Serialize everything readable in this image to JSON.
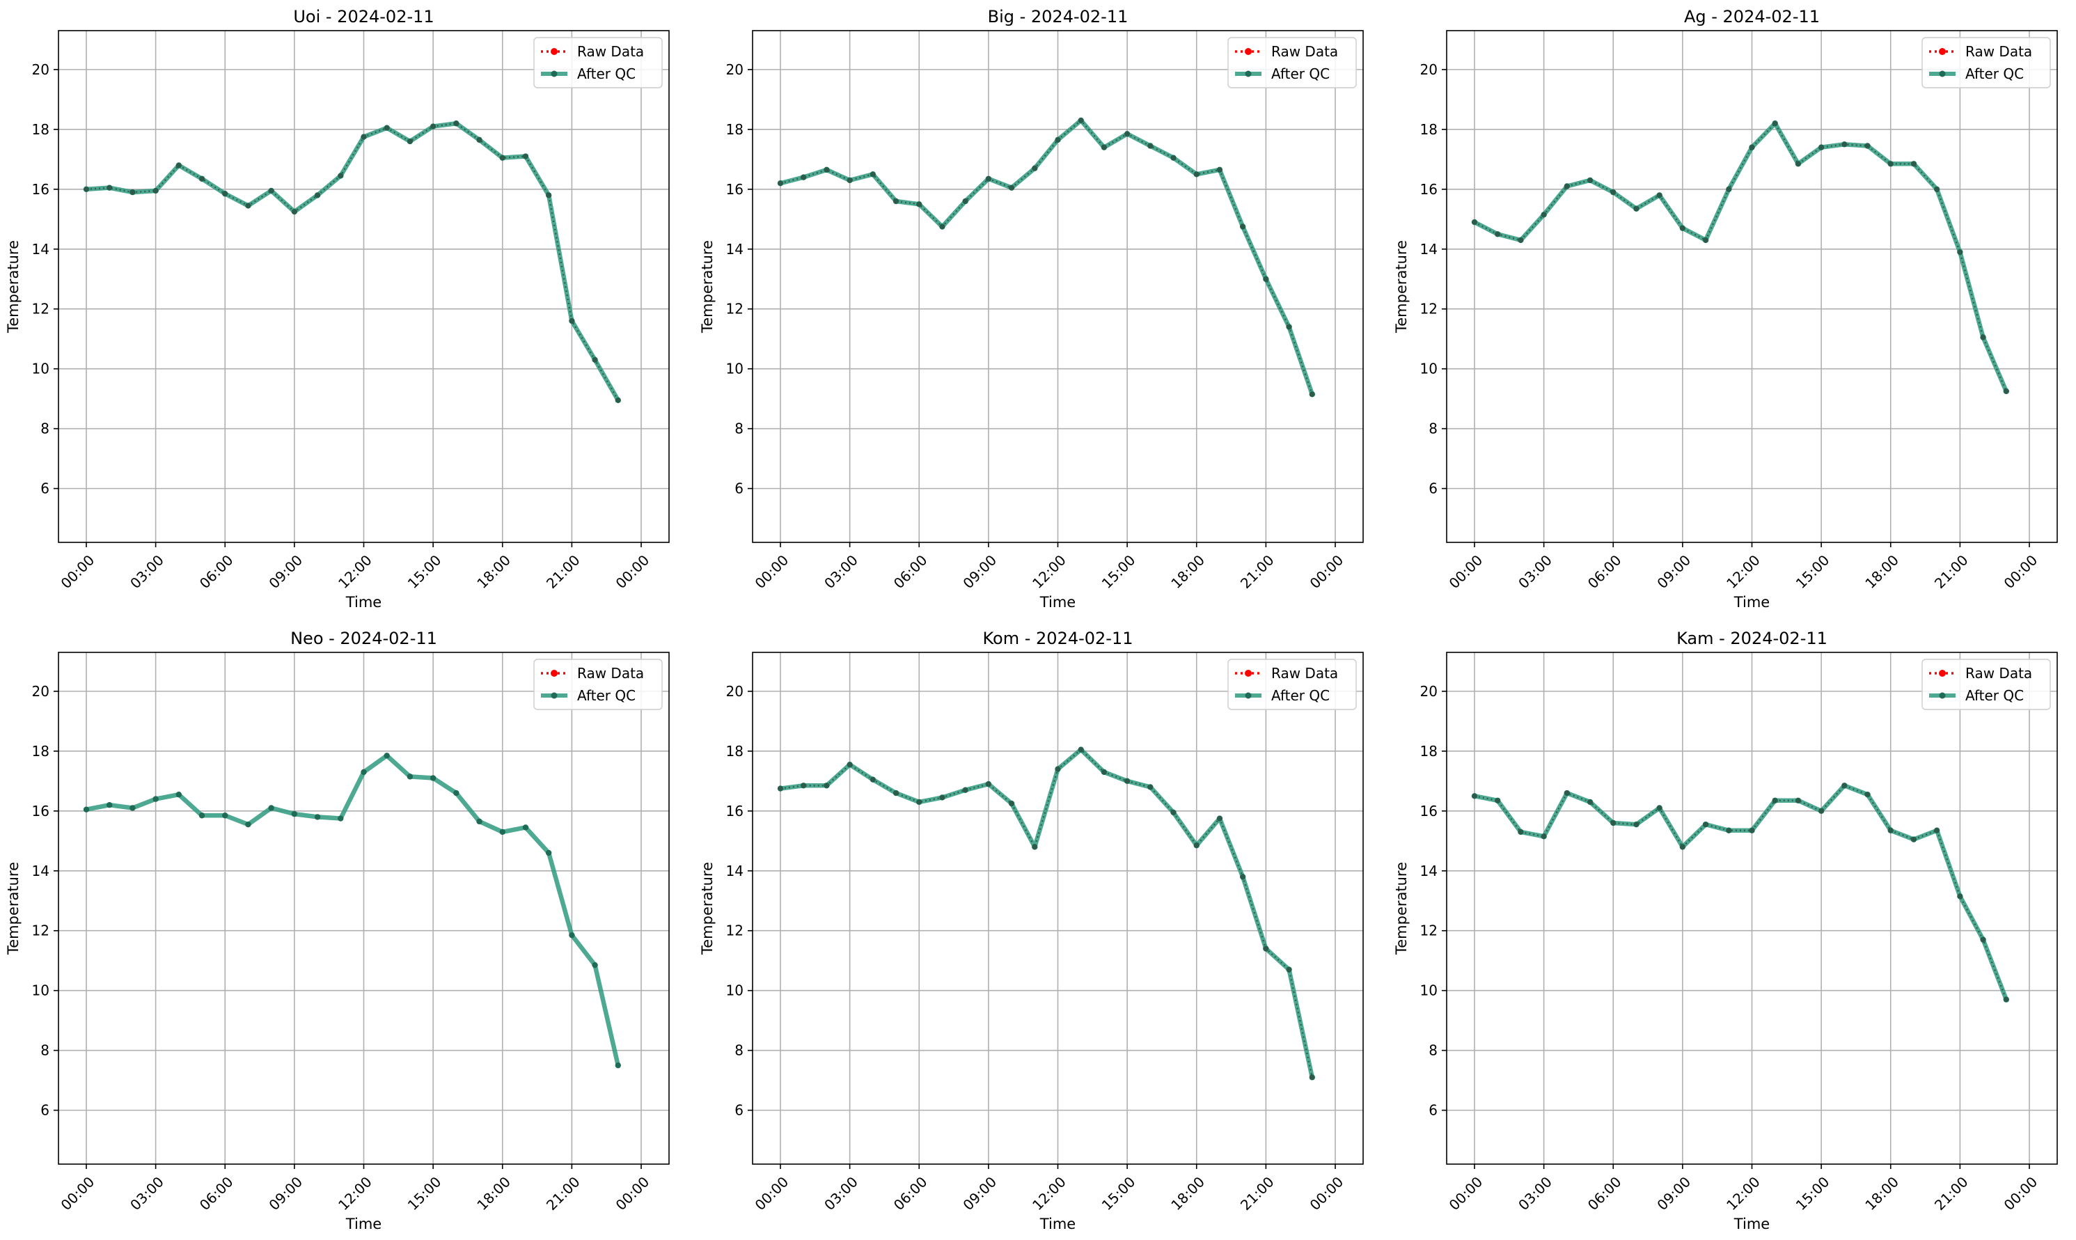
{
  "chart_data": [
    {
      "type": "line",
      "title": "Uoi - 2024-02-11",
      "xlabel": "Time",
      "ylabel": "Temperature",
      "xticks": [
        "00:00",
        "03:00",
        "06:00",
        "09:00",
        "12:00",
        "15:00",
        "18:00",
        "21:00",
        "00:00"
      ],
      "yticks": [
        "6",
        "8",
        "10",
        "12",
        "14",
        "16",
        "18",
        "20"
      ],
      "ylim": [
        4.2,
        21.3
      ],
      "grid": true,
      "legend": {
        "placement": "top-right",
        "entries": [
          "Raw Data",
          "After QC"
        ]
      },
      "series": [
        {
          "name": "Raw Data",
          "color": "#ff0000",
          "values": [
            16.0,
            16.05,
            15.9,
            15.95,
            16.8,
            16.35,
            15.85,
            15.45,
            15.95,
            15.25,
            15.8,
            16.45,
            17.75,
            18.05,
            17.6,
            18.1,
            18.2,
            17.65,
            17.05,
            17.1,
            15.8,
            11.6,
            10.3,
            8.95
          ]
        },
        {
          "name": "After QC",
          "color": "#2e9a7f",
          "values": [
            16.0,
            16.05,
            15.9,
            15.95,
            16.8,
            16.35,
            15.85,
            15.45,
            15.95,
            15.25,
            15.8,
            16.45,
            17.75,
            18.05,
            17.6,
            18.1,
            18.2,
            17.65,
            17.05,
            17.1,
            15.8,
            11.6,
            10.3,
            8.95
          ]
        }
      ]
    },
    {
      "type": "line",
      "title": "Big - 2024-02-11",
      "xlabel": "Time",
      "ylabel": "Temperature",
      "xticks": [
        "00:00",
        "03:00",
        "06:00",
        "09:00",
        "12:00",
        "15:00",
        "18:00",
        "21:00",
        "00:00"
      ],
      "yticks": [
        "6",
        "8",
        "10",
        "12",
        "14",
        "16",
        "18",
        "20"
      ],
      "ylim": [
        4.2,
        21.3
      ],
      "grid": true,
      "legend": {
        "placement": "top-right",
        "entries": [
          "Raw Data",
          "After QC"
        ]
      },
      "series": [
        {
          "name": "Raw Data",
          "color": "#ff0000",
          "values": [
            16.2,
            16.4,
            16.65,
            16.3,
            16.5,
            15.6,
            15.5,
            14.75,
            15.6,
            16.35,
            16.05,
            16.7,
            17.65,
            18.3,
            17.4,
            17.85,
            17.45,
            17.05,
            16.5,
            16.65,
            14.75,
            13.0,
            11.4,
            9.15
          ]
        },
        {
          "name": "After QC",
          "color": "#2e9a7f",
          "values": [
            16.2,
            16.4,
            16.65,
            16.3,
            16.5,
            15.6,
            15.5,
            14.75,
            15.6,
            16.35,
            16.05,
            16.7,
            17.65,
            18.3,
            17.4,
            17.85,
            17.45,
            17.05,
            16.5,
            16.65,
            14.75,
            13.0,
            11.4,
            9.15
          ]
        }
      ]
    },
    {
      "type": "line",
      "title": "Ag - 2024-02-11",
      "xlabel": "Time",
      "ylabel": "Temperature",
      "xticks": [
        "00:00",
        "03:00",
        "06:00",
        "09:00",
        "12:00",
        "15:00",
        "18:00",
        "21:00",
        "00:00"
      ],
      "yticks": [
        "6",
        "8",
        "10",
        "12",
        "14",
        "16",
        "18",
        "20"
      ],
      "ylim": [
        4.2,
        21.3
      ],
      "grid": true,
      "legend": {
        "placement": "top-right",
        "entries": [
          "Raw Data",
          "After QC"
        ]
      },
      "series": [
        {
          "name": "Raw Data",
          "color": "#ff0000",
          "values": [
            14.9,
            14.5,
            14.3,
            15.15,
            16.1,
            16.3,
            15.9,
            15.35,
            15.8,
            14.7,
            14.3,
            16.0,
            17.4,
            18.2,
            16.85,
            17.4,
            17.5,
            17.45,
            16.85,
            16.85,
            16.0,
            13.9,
            11.05,
            9.25
          ]
        },
        {
          "name": "After QC",
          "color": "#2e9a7f",
          "values": [
            14.9,
            14.5,
            14.3,
            15.15,
            16.1,
            16.3,
            15.9,
            15.35,
            15.8,
            14.7,
            14.3,
            16.0,
            17.4,
            18.2,
            16.85,
            17.4,
            17.5,
            17.45,
            16.85,
            16.85,
            16.0,
            13.9,
            11.05,
            9.25
          ]
        }
      ]
    },
    {
      "type": "line",
      "title": "Neo - 2024-02-11",
      "xlabel": "Time",
      "ylabel": "Temperature",
      "xticks": [
        "00:00",
        "03:00",
        "06:00",
        "09:00",
        "12:00",
        "15:00",
        "18:00",
        "21:00",
        "00:00"
      ],
      "yticks": [
        "6",
        "8",
        "10",
        "12",
        "14",
        "16",
        "18",
        "20"
      ],
      "ylim": [
        4.2,
        21.3
      ],
      "grid": true,
      "legend": {
        "placement": "top-right",
        "entries": [
          "Raw Data",
          "After QC"
        ]
      },
      "series": [
        {
          "name": "Raw Data",
          "color": "#ff0000",
          "values": []
        },
        {
          "name": "After QC",
          "color": "#2e9a7f",
          "values": [
            16.05,
            16.2,
            16.1,
            16.4,
            16.55,
            15.85,
            15.85,
            15.55,
            16.1,
            15.9,
            15.8,
            15.75,
            17.3,
            17.85,
            17.15,
            17.1,
            16.6,
            15.65,
            15.3,
            15.45,
            14.6,
            11.85,
            10.85,
            7.5
          ]
        }
      ]
    },
    {
      "type": "line",
      "title": "Kom - 2024-02-11",
      "xlabel": "Time",
      "ylabel": "Temperature",
      "xticks": [
        "00:00",
        "03:00",
        "06:00",
        "09:00",
        "12:00",
        "15:00",
        "18:00",
        "21:00",
        "00:00"
      ],
      "yticks": [
        "6",
        "8",
        "10",
        "12",
        "14",
        "16",
        "18",
        "20"
      ],
      "ylim": [
        4.2,
        21.3
      ],
      "grid": true,
      "legend": {
        "placement": "top-right",
        "entries": [
          "Raw Data",
          "After QC"
        ]
      },
      "series": [
        {
          "name": "Raw Data",
          "color": "#ff0000",
          "values": [
            16.75,
            16.85,
            16.85,
            17.55,
            17.05,
            16.6,
            16.3,
            16.45,
            16.7,
            16.9,
            16.25,
            14.8,
            17.4,
            18.05,
            17.3,
            17.0,
            16.8,
            15.95,
            14.85,
            15.75,
            13.8,
            11.4,
            10.7,
            7.1
          ]
        },
        {
          "name": "After QC",
          "color": "#2e9a7f",
          "values": [
            16.75,
            16.85,
            16.85,
            17.55,
            17.05,
            16.6,
            16.3,
            16.45,
            16.7,
            16.9,
            16.25,
            14.8,
            17.4,
            18.05,
            17.3,
            17.0,
            16.8,
            15.95,
            14.85,
            15.75,
            13.8,
            11.4,
            10.7,
            7.1
          ]
        }
      ]
    },
    {
      "type": "line",
      "title": "Kam - 2024-02-11",
      "xlabel": "Time",
      "ylabel": "Temperature",
      "xticks": [
        "00:00",
        "03:00",
        "06:00",
        "09:00",
        "12:00",
        "15:00",
        "18:00",
        "21:00",
        "00:00"
      ],
      "yticks": [
        "6",
        "8",
        "10",
        "12",
        "14",
        "16",
        "18",
        "20"
      ],
      "ylim": [
        4.2,
        21.3
      ],
      "grid": true,
      "legend": {
        "placement": "top-right",
        "entries": [
          "Raw Data",
          "After QC"
        ]
      },
      "series": [
        {
          "name": "Raw Data",
          "color": "#ff0000",
          "values": [
            16.5,
            16.35,
            15.3,
            15.15,
            16.6,
            16.3,
            15.6,
            15.55,
            16.1,
            14.8,
            15.55,
            15.35,
            15.35,
            16.35,
            16.35,
            16.0,
            16.85,
            16.55,
            15.35,
            15.05,
            15.35,
            13.15,
            11.7,
            9.7
          ]
        },
        {
          "name": "After QC",
          "color": "#2e9a7f",
          "values": [
            16.5,
            16.35,
            15.3,
            15.15,
            16.6,
            16.3,
            15.6,
            15.55,
            16.1,
            14.8,
            15.55,
            15.35,
            15.35,
            16.35,
            16.35,
            16.0,
            16.85,
            16.55,
            15.35,
            15.05,
            15.35,
            13.15,
            11.7,
            9.7
          ]
        }
      ]
    }
  ]
}
